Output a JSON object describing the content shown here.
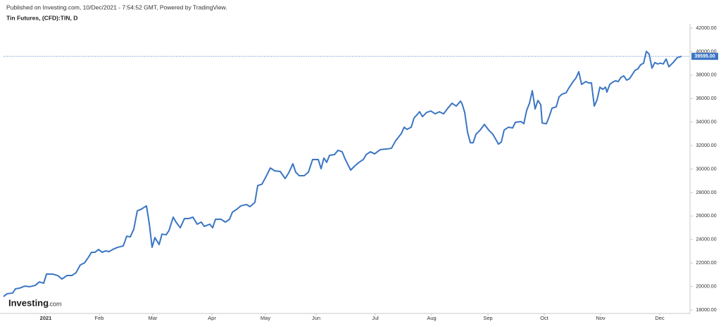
{
  "header": {
    "published": "Published on Investing.com, 10/Dec/2021 - 7:54:52 GMT, Powered by TradingView.",
    "symbol": "Tin Futures, (CFD):TIN, D"
  },
  "logo": {
    "brand": "Investing",
    "suffix": ".com"
  },
  "chart_data": {
    "type": "line",
    "x": [
      0,
      1.25,
      3.25,
      4.25,
      5.75,
      7.5,
      9.25,
      11.25,
      12.75,
      14.25,
      15.25,
      17.5,
      19.25,
      20.75,
      22.5,
      24.25,
      25.75,
      27.25,
      28.75,
      30,
      31.25,
      32.5,
      33.75,
      35,
      36.25,
      37.5,
      38.75,
      40.5,
      42.5,
      43.75,
      45,
      46.25,
      47.5,
      48.75,
      50.75,
      51.75,
      52.75,
      53.75,
      55.25,
      56.25,
      57.75,
      58.75,
      60.25,
      61.25,
      62.75,
      64.25,
      65.75,
      67.25,
      68.75,
      70.25,
      71.25,
      73.25,
      74.25,
      75.25,
      77.25,
      78.75,
      80.25,
      81.25,
      82.75,
      84.25,
      86.25,
      87.5,
      89.25,
      90.25,
      91.75,
      93.25,
      94.75,
      96.25,
      98.25,
      100,
      101.25,
      102.75,
      103.75,
      105,
      106.75,
      108.25,
      109.75,
      111.75,
      112.75,
      113.75,
      114.75,
      115.75,
      117.5,
      118.75,
      120.25,
      121.25,
      123.25,
      124.75,
      126.25,
      127.75,
      128.75,
      130.25,
      131.75,
      133.75,
      136.25,
      137.75,
      139.25,
      141.25,
      142.25,
      143.25,
      144.75,
      145.75,
      147.75,
      148.75,
      150.25,
      151.75,
      153.25,
      154.75,
      156.25,
      157.75,
      159.25,
      160.75,
      162.25,
      162.75,
      163.75,
      164.75,
      165.75,
      166.75,
      167.75,
      169.25,
      170.75,
      172.25,
      173.75,
      175.75,
      176.75,
      177.75,
      179.25,
      180.75,
      181.75,
      183.75,
      184.75,
      185.75,
      186.75,
      187.75,
      188.75,
      189.75,
      190.75,
      191.25,
      192.75,
      193.75,
      194.75,
      196.25,
      197.25,
      198.25,
      199.75,
      200.75,
      202.25,
      203.25,
      204.25,
      205.25,
      206.75,
      207.75,
      208.75,
      209.75,
      210.75,
      211.75,
      212.75,
      213.75,
      214.25,
      215.25,
      216.25,
      217.25,
      218.25,
      219.25,
      220.25,
      221.25,
      222.25,
      223.25,
      224.25,
      225.25,
      226.25,
      227.25,
      228.25,
      229.25,
      230.25,
      231.25,
      232.25,
      233.25,
      234.25,
      235.25,
      236.25,
      237.75,
      239.25,
      240.75
    ],
    "series": [
      {
        "color": "#3a75c4",
        "values": [
          19140,
          19380,
          19440,
          19800,
          19860,
          20030,
          19980,
          20090,
          20390,
          20270,
          21050,
          21050,
          20930,
          20630,
          20930,
          20930,
          21170,
          21830,
          22010,
          22430,
          22910,
          22910,
          23150,
          22910,
          23030,
          22970,
          23150,
          23330,
          23450,
          24280,
          24220,
          24880,
          26440,
          26560,
          26860,
          25360,
          23330,
          24160,
          23570,
          24460,
          24400,
          24760,
          25900,
          25480,
          25000,
          25780,
          25780,
          25900,
          25300,
          25480,
          25120,
          25300,
          25000,
          25720,
          25720,
          25480,
          25720,
          26320,
          26560,
          26860,
          26980,
          26800,
          27160,
          28590,
          28710,
          29370,
          30090,
          29850,
          29790,
          29190,
          29670,
          30450,
          29730,
          29430,
          29430,
          29730,
          30810,
          30810,
          30030,
          30930,
          30570,
          31170,
          31230,
          31590,
          31470,
          30870,
          29910,
          30270,
          30570,
          30810,
          31230,
          31470,
          31290,
          31650,
          31710,
          31770,
          32420,
          33020,
          33560,
          33380,
          33560,
          34340,
          34880,
          34460,
          34820,
          34940,
          34700,
          34880,
          34700,
          35180,
          35600,
          35360,
          35780,
          35600,
          34820,
          33140,
          32240,
          32240,
          32960,
          33320,
          33800,
          33320,
          32960,
          32120,
          32300,
          33320,
          33560,
          33500,
          33980,
          34040,
          33860,
          35000,
          35600,
          36670,
          35120,
          35840,
          35480,
          33920,
          33860,
          34460,
          35180,
          35300,
          36140,
          36370,
          36490,
          36910,
          37450,
          37750,
          38290,
          37210,
          37450,
          37330,
          37330,
          35360,
          35900,
          36970,
          36790,
          36970,
          36550,
          37210,
          37390,
          37510,
          37450,
          37810,
          37930,
          37570,
          37690,
          38050,
          38410,
          38530,
          38890,
          39010,
          40020,
          39790,
          38590,
          39070,
          38950,
          39010,
          38950,
          39370,
          38710,
          39070,
          39490,
          39595
        ]
      }
    ],
    "xlim": [
      0,
      242.5
    ],
    "xticks": [
      {
        "value": 15,
        "label": "2021"
      },
      {
        "value": 34,
        "label": "Feb"
      },
      {
        "value": 53,
        "label": "Mar"
      },
      {
        "value": 74,
        "label": "Apr"
      },
      {
        "value": 93,
        "label": "May"
      },
      {
        "value": 111,
        "label": "Jun"
      },
      {
        "value": 132,
        "label": "Jul"
      },
      {
        "value": 152,
        "label": "Aug"
      },
      {
        "value": 172,
        "label": "Sep"
      },
      {
        "value": 192,
        "label": "Oct"
      },
      {
        "value": 212,
        "label": "Nov"
      },
      {
        "value": 233,
        "label": "Dec"
      }
    ],
    "ylim": [
      18000,
      42000
    ],
    "yticks": [
      {
        "value": 18000,
        "label": "18000.00"
      },
      {
        "value": 20000,
        "label": "20000.00"
      },
      {
        "value": 22000,
        "label": "22000.00"
      },
      {
        "value": 24000,
        "label": "24000.00"
      },
      {
        "value": 26000,
        "label": "26000.00"
      },
      {
        "value": 28000,
        "label": "28000.00"
      },
      {
        "value": 30000,
        "label": "30000.00"
      },
      {
        "value": 32000,
        "label": "32000.00"
      },
      {
        "value": 34000,
        "label": "34000.00"
      },
      {
        "value": 36000,
        "label": "36000.00"
      },
      {
        "value": 38000,
        "label": "38000.00"
      },
      {
        "value": 40000,
        "label": "40000.00"
      },
      {
        "value": 42000,
        "label": "42000.00"
      }
    ],
    "last_price": {
      "value": 39595,
      "label": "39595.00"
    }
  }
}
